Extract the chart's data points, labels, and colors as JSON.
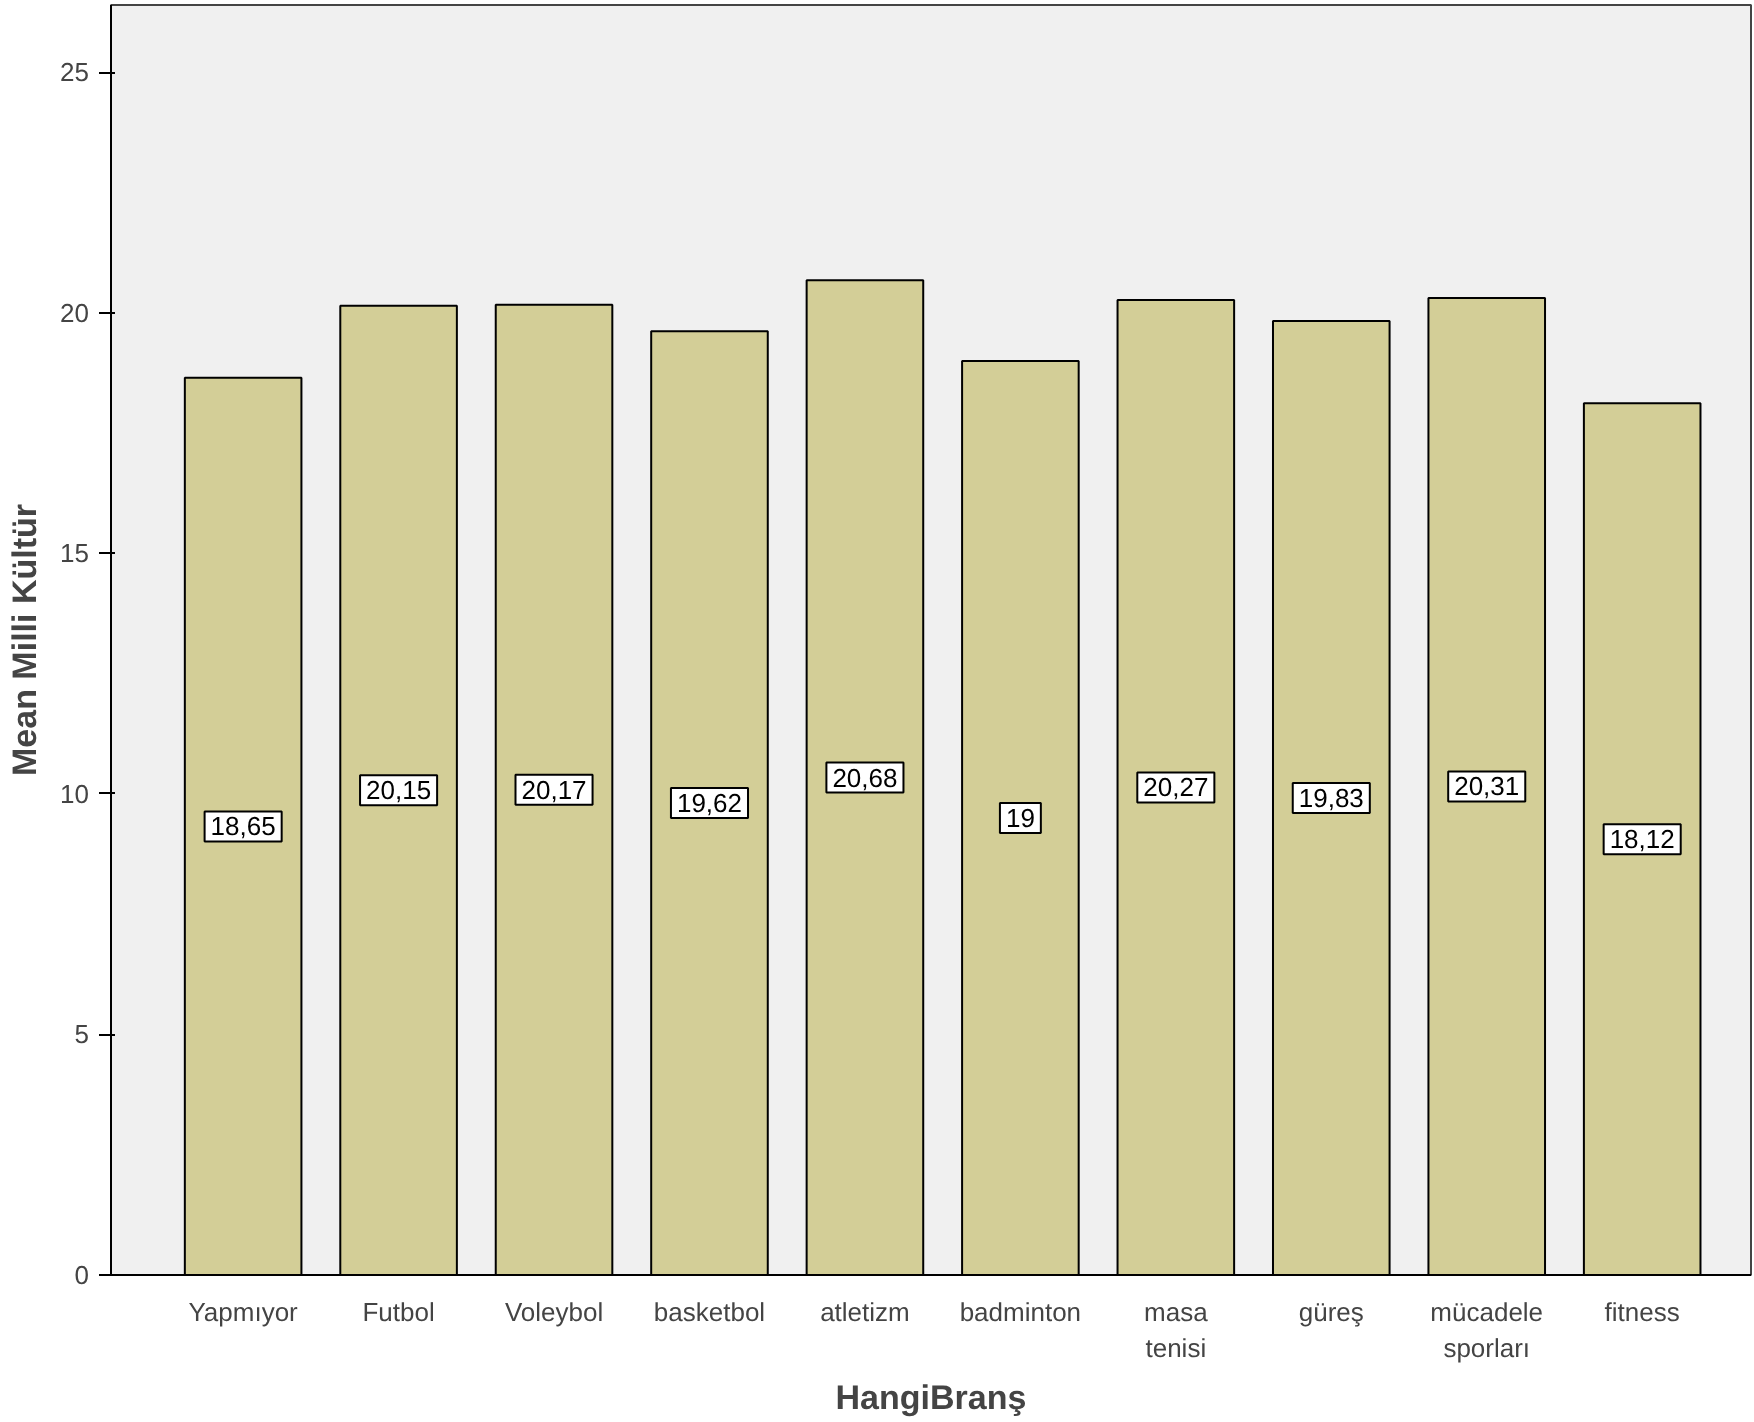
{
  "chart_data": {
    "type": "bar",
    "xlabel": "HangiBranş",
    "ylabel": "Mean Milli Kültür",
    "categories": [
      "Yapmıyor",
      "Futbol",
      "Voleybol",
      "basketbol",
      "atletizm",
      "badminton",
      "masa\ntenisi",
      "güreş",
      "mücadele\nsporları",
      "fitness"
    ],
    "values": [
      18.65,
      20.15,
      20.17,
      19.62,
      20.68,
      19,
      20.27,
      19.83,
      20.31,
      18.12
    ],
    "value_labels": [
      "18,65",
      "20,15",
      "20,17",
      "19,62",
      "20,68",
      "19",
      "20,27",
      "19,83",
      "20,31",
      "18,12"
    ],
    "color": "#d3ce97",
    "ylim": [
      0,
      26.4
    ],
    "yticks": [
      0,
      5,
      10,
      15,
      20,
      25
    ],
    "grid": false
  }
}
